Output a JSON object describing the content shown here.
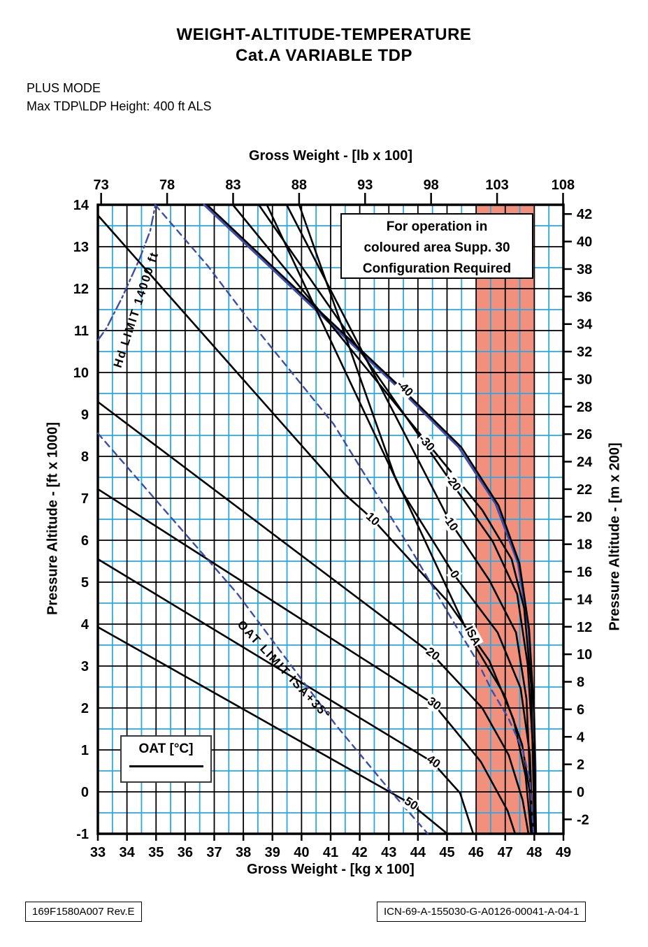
{
  "header": {
    "title_line1": "WEIGHT-ALTITUDE-TEMPERATURE",
    "title_line2": "Cat.A VARIABLE TDP",
    "mode_line": "PLUS MODE",
    "height_line": "Max TDP\\LDP Height: 400 ft ALS"
  },
  "note_box": {
    "line1": "For operation in",
    "line2": "coloured area Supp. 30",
    "line3": "Configuration Required"
  },
  "legend": {
    "label": "OAT [°C]"
  },
  "footer": {
    "left_code": "169F1580A007 Rev.E",
    "right_code": "ICN-69-A-155030-G-A0126-00041-A-04-1"
  },
  "chart_data": {
    "type": "line",
    "title": "WEIGHT-ALTITUDE-TEMPERATURE Cat.A VARIABLE TDP",
    "grid": "on",
    "axes": {
      "top": {
        "label": "Gross Weight - [lb x 100]",
        "ticks": [
          73,
          78,
          83,
          88,
          93,
          98,
          103,
          108
        ]
      },
      "bottom": {
        "label": "Gross Weight - [kg x 100]",
        "ticks": [
          33,
          34,
          35,
          36,
          37,
          38,
          39,
          40,
          41,
          42,
          43,
          44,
          45,
          46,
          47,
          48,
          49
        ],
        "range": [
          33,
          49
        ]
      },
      "left": {
        "label": "Pressure Altitude - [ft x 1000]",
        "ticks": [
          14,
          13,
          12,
          11,
          10,
          9,
          8,
          7,
          6,
          5,
          4,
          3,
          2,
          1,
          0,
          -1
        ],
        "range": [
          -1,
          14
        ]
      },
      "right": {
        "label": "Pressure Altitude - [m x 200]",
        "ticks": [
          42,
          40,
          38,
          36,
          34,
          32,
          30,
          28,
          26,
          24,
          22,
          20,
          18,
          16,
          14,
          12,
          10,
          8,
          6,
          4,
          2,
          0,
          -2
        ]
      }
    },
    "red_band": {
      "kg_from": 46,
      "kg_to": 48
    },
    "colors": {
      "minor_grid": "#29a8e0",
      "major_grid": "#000000",
      "red_band": "#f2907e",
      "blue_line": "#3d4ea8",
      "curve": "#000000"
    },
    "series": [
      {
        "name": "-40",
        "style": "solid",
        "color": "black",
        "points": [
          [
            36.75,
            14
          ],
          [
            43.47,
            9.6
          ],
          [
            45.49,
            8.22
          ],
          [
            46.77,
            6.83
          ],
          [
            47.49,
            5.45
          ],
          [
            47.82,
            3.88
          ],
          [
            47.99,
            1.88
          ],
          [
            48.06,
            -1
          ]
        ],
        "label": {
          "text": "-40",
          "kg": 43.55,
          "alt": 9.62,
          "rot": 45
        }
      },
      {
        "name": "-30",
        "style": "solid",
        "color": "black",
        "points": [
          [
            37.64,
            14
          ],
          [
            44.29,
            8.35
          ],
          [
            46.21,
            6.72
          ],
          [
            47.22,
            5.55
          ],
          [
            47.65,
            4.38
          ],
          [
            47.89,
            2.55
          ],
          [
            48.01,
            -1
          ]
        ],
        "label": {
          "text": "-30",
          "kg": 44.29,
          "alt": 8.32,
          "rot": 48
        }
      },
      {
        "name": "-20",
        "style": "solid",
        "color": "black",
        "points": [
          [
            38.53,
            14
          ],
          [
            45.18,
            7.35
          ],
          [
            46.57,
            5.97
          ],
          [
            47.41,
            4.72
          ],
          [
            47.77,
            3.05
          ],
          [
            47.97,
            0.88
          ],
          [
            47.99,
            -1
          ]
        ],
        "label": {
          "text": "-20",
          "kg": 45.21,
          "alt": 7.37,
          "rot": 52
        }
      },
      {
        "name": "-10",
        "style": "solid",
        "color": "black",
        "points": [
          [
            39.49,
            14
          ],
          [
            45.08,
            6.47
          ],
          [
            46.45,
            5.05
          ],
          [
            47.37,
            3.8
          ],
          [
            47.73,
            2.22
          ],
          [
            47.94,
            -1
          ]
        ],
        "label": {
          "text": "-10",
          "kg": 45.11,
          "alt": 6.42,
          "rot": 55
        }
      },
      {
        "name": "0",
        "style": "solid",
        "color": "black",
        "points": [
          [
            38.81,
            14
          ],
          [
            43.4,
            7.22
          ],
          [
            45.25,
            5.17
          ],
          [
            46.74,
            3.8
          ],
          [
            47.53,
            2.47
          ],
          [
            47.85,
            0.88
          ],
          [
            47.94,
            -1
          ]
        ],
        "label": {
          "text": "0",
          "kg": 45.25,
          "alt": 5.18,
          "rot": 58
        }
      },
      {
        "name": "ISA",
        "style": "solid",
        "color": "black",
        "points": [
          [
            39.92,
            14
          ],
          [
            43.19,
            7.55
          ],
          [
            45.8,
            3.67
          ],
          [
            46.98,
            2.3
          ],
          [
            47.58,
            1.13
          ],
          [
            47.85,
            -0.03
          ],
          [
            47.92,
            -1
          ]
        ],
        "label": {
          "text": "ISA",
          "kg": 45.88,
          "alt": 3.72,
          "rot": 62
        }
      },
      {
        "name": "10",
        "style": "solid",
        "color": "black",
        "points": [
          [
            33,
            13.75
          ],
          [
            41.48,
            7.1
          ],
          [
            42.42,
            6.52
          ],
          [
            45.01,
            4.55
          ],
          [
            46.45,
            3.13
          ],
          [
            47.29,
            1.72
          ],
          [
            47.7,
            0.38
          ],
          [
            47.89,
            -1
          ]
        ],
        "label": {
          "text": "10",
          "kg": 42.44,
          "alt": 6.5,
          "rot": 42
        }
      },
      {
        "name": "20",
        "style": "solid",
        "color": "black",
        "points": [
          [
            33,
            9.3
          ],
          [
            44.46,
            3.3
          ],
          [
            46.21,
            2.0
          ],
          [
            47.12,
            0.88
          ],
          [
            47.6,
            -0.2
          ],
          [
            47.8,
            -1
          ]
        ],
        "label": {
          "text": "20",
          "kg": 44.51,
          "alt": 3.28,
          "rot": 37
        }
      },
      {
        "name": "30",
        "style": "solid",
        "color": "black",
        "points": [
          [
            33,
            7.22
          ],
          [
            44.53,
            2.1
          ],
          [
            46.16,
            0.72
          ],
          [
            47.08,
            -0.45
          ],
          [
            47.34,
            -1
          ]
        ],
        "label": {
          "text": "30",
          "kg": 44.56,
          "alt": 2.1,
          "rot": 36
        }
      },
      {
        "name": "40",
        "style": "solid",
        "color": "black",
        "points": [
          [
            33,
            5.55
          ],
          [
            44.48,
            0.72
          ],
          [
            45.45,
            -0.03
          ],
          [
            45.9,
            -1
          ]
        ],
        "label": {
          "text": "40",
          "kg": 44.53,
          "alt": 0.72,
          "rot": 35
        }
      },
      {
        "name": "50",
        "style": "solid",
        "color": "black",
        "points": [
          [
            33,
            3.93
          ],
          [
            43.74,
            -0.28
          ],
          [
            45.01,
            -1
          ]
        ],
        "label": {
          "text": "50",
          "kg": 43.76,
          "alt": -0.28,
          "rot": 33
        }
      }
    ],
    "limit_lines": [
      {
        "name": "blue-envelope",
        "style": "solid",
        "color": "blue",
        "points": [
          [
            36.65,
            14
          ],
          [
            43.38,
            9.6
          ],
          [
            45.4,
            8.22
          ],
          [
            46.67,
            6.87
          ],
          [
            47.44,
            5.45
          ],
          [
            47.8,
            3.88
          ],
          [
            47.99,
            1.88
          ],
          [
            48.04,
            0.55
          ],
          [
            48.04,
            -0.95
          ]
        ]
      },
      {
        "name": "hd-limit",
        "style": "dashdot",
        "color": "blue",
        "points": [
          [
            33,
            10.77
          ],
          [
            33.29,
            11.05
          ],
          [
            33.84,
            11.8
          ],
          [
            34.44,
            12.72
          ],
          [
            34.8,
            13.38
          ],
          [
            34.97,
            13.97
          ]
        ],
        "label": {
          "text": "Hd LIMIT 14000 ft",
          "kg": 34.32,
          "alt": 11.5,
          "rot": -72
        }
      },
      {
        "name": "oat-limit-lower",
        "style": "dashed",
        "color": "blue",
        "points": [
          [
            33,
            8.55
          ],
          [
            37.8,
            4.72
          ],
          [
            41.17,
            1.6
          ],
          [
            43.02,
            0.05
          ],
          [
            44.34,
            -1
          ]
        ],
        "label": {
          "text": "OAT LIMIT ISA+35°",
          "kg": 39.4,
          "alt": 2.9,
          "rot": 47
        }
      },
      {
        "name": "oat-limit-upper",
        "style": "dashed",
        "color": "blue",
        "points": [
          [
            34.97,
            14
          ],
          [
            36.77,
            12.55
          ],
          [
            38.05,
            11.38
          ],
          [
            41.1,
            8.77
          ],
          [
            43.81,
            5.72
          ],
          [
            45.18,
            4.1
          ],
          [
            46.05,
            3.1
          ],
          [
            46.53,
            2.43
          ],
          [
            47.1,
            1.77
          ],
          [
            47.6,
            1.0
          ],
          [
            47.85,
            0.27
          ],
          [
            47.97,
            -0.95
          ]
        ]
      }
    ]
  }
}
